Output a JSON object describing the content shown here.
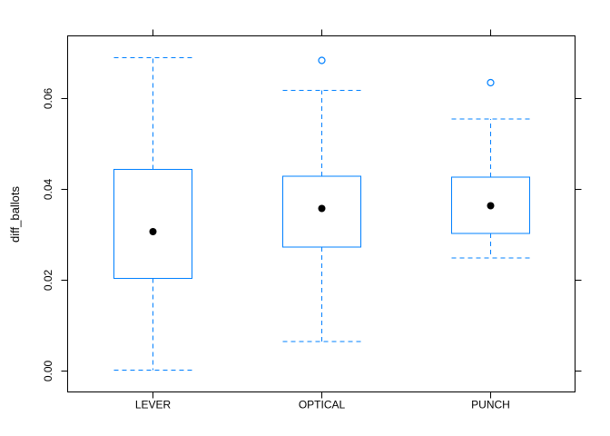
{
  "chart_data": {
    "type": "boxplot",
    "title": "",
    "xlabel": "",
    "ylabel": "diff_ballots",
    "ylim": [
      -0.0048,
      0.0736
    ],
    "yticks": [
      0.0,
      0.02,
      0.04,
      0.06
    ],
    "ytick_labels": [
      "0.00",
      "0.02",
      "0.04",
      "0.06"
    ],
    "categories": [
      "LEVER",
      "OPTICAL",
      "PUNCH"
    ],
    "boxes": [
      {
        "category": "LEVER",
        "whisker_low": 0.0,
        "q1": 0.0202,
        "median": 0.0305,
        "q3": 0.0442,
        "whisker_high": 0.0688,
        "outliers": []
      },
      {
        "category": "OPTICAL",
        "whisker_low": 0.0063,
        "q1": 0.0271,
        "median": 0.0356,
        "q3": 0.0427,
        "whisker_high": 0.0616,
        "outliers": [
          0.0682
        ]
      },
      {
        "category": "PUNCH",
        "whisker_low": 0.0247,
        "q1": 0.0301,
        "median": 0.0362,
        "q3": 0.0425,
        "whisker_high": 0.0553,
        "outliers": [
          0.0633
        ]
      }
    ],
    "colors": {
      "box": "#0080ff",
      "median": "#000000",
      "axis": "#000000"
    },
    "grid": false,
    "legend": "none"
  }
}
